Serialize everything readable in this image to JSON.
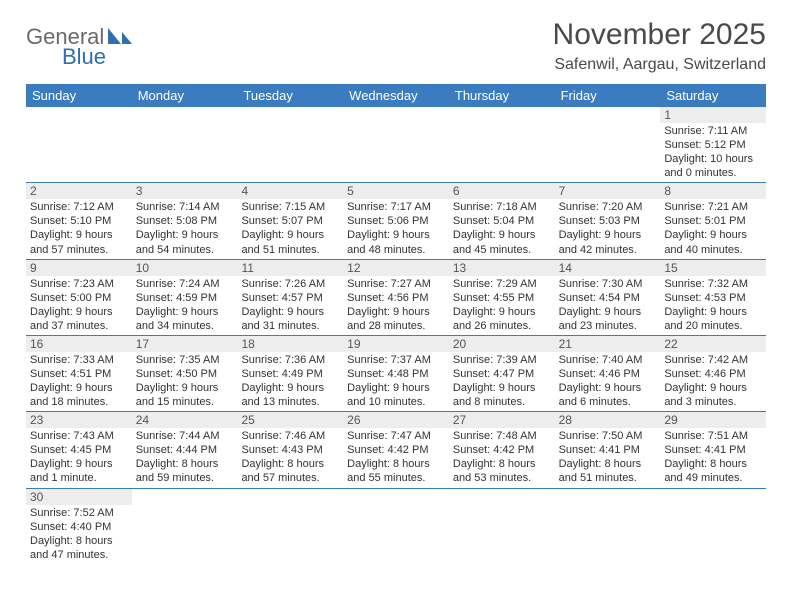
{
  "brand": {
    "name1": "General",
    "name2": "Blue"
  },
  "title": "November 2025",
  "location": "Safenwil, Aargau, Switzerland",
  "dayHeaders": [
    "Sunday",
    "Monday",
    "Tuesday",
    "Wednesday",
    "Thursday",
    "Friday",
    "Saturday"
  ],
  "colors": {
    "header_bg": "#3b7cc0",
    "header_text": "#ffffff",
    "daynum_bg": "#ededed",
    "text": "#333333",
    "title_text": "#4a4a4a",
    "brand_grey": "#6a6a6a",
    "brand_blue": "#2f6fb0",
    "row_border": "#3b7cc0",
    "background": "#ffffff"
  },
  "weeks": [
    [
      null,
      null,
      null,
      null,
      null,
      null,
      {
        "n": "1",
        "sunrise": "7:11 AM",
        "sunset": "5:12 PM",
        "dlh": "10",
        "dlm": "0"
      }
    ],
    [
      {
        "n": "2",
        "sunrise": "7:12 AM",
        "sunset": "5:10 PM",
        "dlh": "9",
        "dlm": "57"
      },
      {
        "n": "3",
        "sunrise": "7:14 AM",
        "sunset": "5:08 PM",
        "dlh": "9",
        "dlm": "54"
      },
      {
        "n": "4",
        "sunrise": "7:15 AM",
        "sunset": "5:07 PM",
        "dlh": "9",
        "dlm": "51"
      },
      {
        "n": "5",
        "sunrise": "7:17 AM",
        "sunset": "5:06 PM",
        "dlh": "9",
        "dlm": "48"
      },
      {
        "n": "6",
        "sunrise": "7:18 AM",
        "sunset": "5:04 PM",
        "dlh": "9",
        "dlm": "45"
      },
      {
        "n": "7",
        "sunrise": "7:20 AM",
        "sunset": "5:03 PM",
        "dlh": "9",
        "dlm": "42"
      },
      {
        "n": "8",
        "sunrise": "7:21 AM",
        "sunset": "5:01 PM",
        "dlh": "9",
        "dlm": "40"
      }
    ],
    [
      {
        "n": "9",
        "sunrise": "7:23 AM",
        "sunset": "5:00 PM",
        "dlh": "9",
        "dlm": "37"
      },
      {
        "n": "10",
        "sunrise": "7:24 AM",
        "sunset": "4:59 PM",
        "dlh": "9",
        "dlm": "34"
      },
      {
        "n": "11",
        "sunrise": "7:26 AM",
        "sunset": "4:57 PM",
        "dlh": "9",
        "dlm": "31"
      },
      {
        "n": "12",
        "sunrise": "7:27 AM",
        "sunset": "4:56 PM",
        "dlh": "9",
        "dlm": "28"
      },
      {
        "n": "13",
        "sunrise": "7:29 AM",
        "sunset": "4:55 PM",
        "dlh": "9",
        "dlm": "26"
      },
      {
        "n": "14",
        "sunrise": "7:30 AM",
        "sunset": "4:54 PM",
        "dlh": "9",
        "dlm": "23"
      },
      {
        "n": "15",
        "sunrise": "7:32 AM",
        "sunset": "4:53 PM",
        "dlh": "9",
        "dlm": "20"
      }
    ],
    [
      {
        "n": "16",
        "sunrise": "7:33 AM",
        "sunset": "4:51 PM",
        "dlh": "9",
        "dlm": "18"
      },
      {
        "n": "17",
        "sunrise": "7:35 AM",
        "sunset": "4:50 PM",
        "dlh": "9",
        "dlm": "15"
      },
      {
        "n": "18",
        "sunrise": "7:36 AM",
        "sunset": "4:49 PM",
        "dlh": "9",
        "dlm": "13"
      },
      {
        "n": "19",
        "sunrise": "7:37 AM",
        "sunset": "4:48 PM",
        "dlh": "9",
        "dlm": "10"
      },
      {
        "n": "20",
        "sunrise": "7:39 AM",
        "sunset": "4:47 PM",
        "dlh": "9",
        "dlm": "8"
      },
      {
        "n": "21",
        "sunrise": "7:40 AM",
        "sunset": "4:46 PM",
        "dlh": "9",
        "dlm": "6"
      },
      {
        "n": "22",
        "sunrise": "7:42 AM",
        "sunset": "4:46 PM",
        "dlh": "9",
        "dlm": "3"
      }
    ],
    [
      {
        "n": "23",
        "sunrise": "7:43 AM",
        "sunset": "4:45 PM",
        "dlh": "9",
        "dlm": "1",
        "unit": "minute"
      },
      {
        "n": "24",
        "sunrise": "7:44 AM",
        "sunset": "4:44 PM",
        "dlh": "8",
        "dlm": "59"
      },
      {
        "n": "25",
        "sunrise": "7:46 AM",
        "sunset": "4:43 PM",
        "dlh": "8",
        "dlm": "57"
      },
      {
        "n": "26",
        "sunrise": "7:47 AM",
        "sunset": "4:42 PM",
        "dlh": "8",
        "dlm": "55"
      },
      {
        "n": "27",
        "sunrise": "7:48 AM",
        "sunset": "4:42 PM",
        "dlh": "8",
        "dlm": "53"
      },
      {
        "n": "28",
        "sunrise": "7:50 AM",
        "sunset": "4:41 PM",
        "dlh": "8",
        "dlm": "51"
      },
      {
        "n": "29",
        "sunrise": "7:51 AM",
        "sunset": "4:41 PM",
        "dlh": "8",
        "dlm": "49"
      }
    ],
    [
      {
        "n": "30",
        "sunrise": "7:52 AM",
        "sunset": "4:40 PM",
        "dlh": "8",
        "dlm": "47"
      },
      null,
      null,
      null,
      null,
      null,
      null
    ]
  ]
}
